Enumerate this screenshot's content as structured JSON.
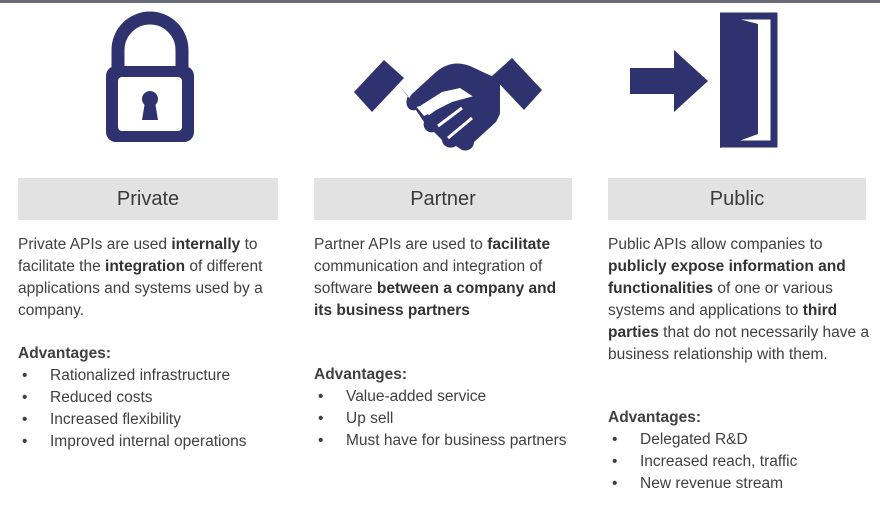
{
  "colors": {
    "icon": "#2e3370",
    "header_bg": "#e2e2e2",
    "text": "#404040"
  },
  "icons": {
    "private": "padlock-icon",
    "partner": "handshake-icon",
    "public": "door-entry-icon"
  },
  "columns": {
    "private": {
      "title": "Private",
      "desc": [
        {
          "t": "Private APIs are used "
        },
        {
          "t": "internally",
          "b": true
        },
        {
          "t": " to facilitate the "
        },
        {
          "t": "integration",
          "b": true
        },
        {
          "t": " of different applications and systems used by a company."
        }
      ],
      "advantages_title": "Advantages:",
      "advantages": [
        "Rationalized infrastructure",
        "Reduced costs",
        "Increased flexibility",
        "Improved internal operations"
      ]
    },
    "partner": {
      "title": "Partner",
      "desc": [
        {
          "t": "Partner APIs are used to "
        },
        {
          "t": "facilitate",
          "b": true
        },
        {
          "t": " communication and integration of software "
        },
        {
          "t": "between a company and its business partners",
          "b": true
        }
      ],
      "advantages_title": "Advantages:",
      "advantages": [
        "Value-added service",
        "Up sell",
        "Must have for business partners"
      ]
    },
    "public": {
      "title": "Public",
      "desc": [
        {
          "t": "Public APIs allow companies to "
        },
        {
          "t": "publicly expose information and functionalities",
          "b": true
        },
        {
          "t": " of one or various systems and applications to "
        },
        {
          "t": "third parties",
          "b": true
        },
        {
          "t": " that do not necessarily have a business relationship with them."
        }
      ],
      "advantages_title": "Advantages:",
      "advantages": [
        "Delegated R&D",
        "Increased reach, traffic",
        "New revenue stream"
      ]
    }
  }
}
